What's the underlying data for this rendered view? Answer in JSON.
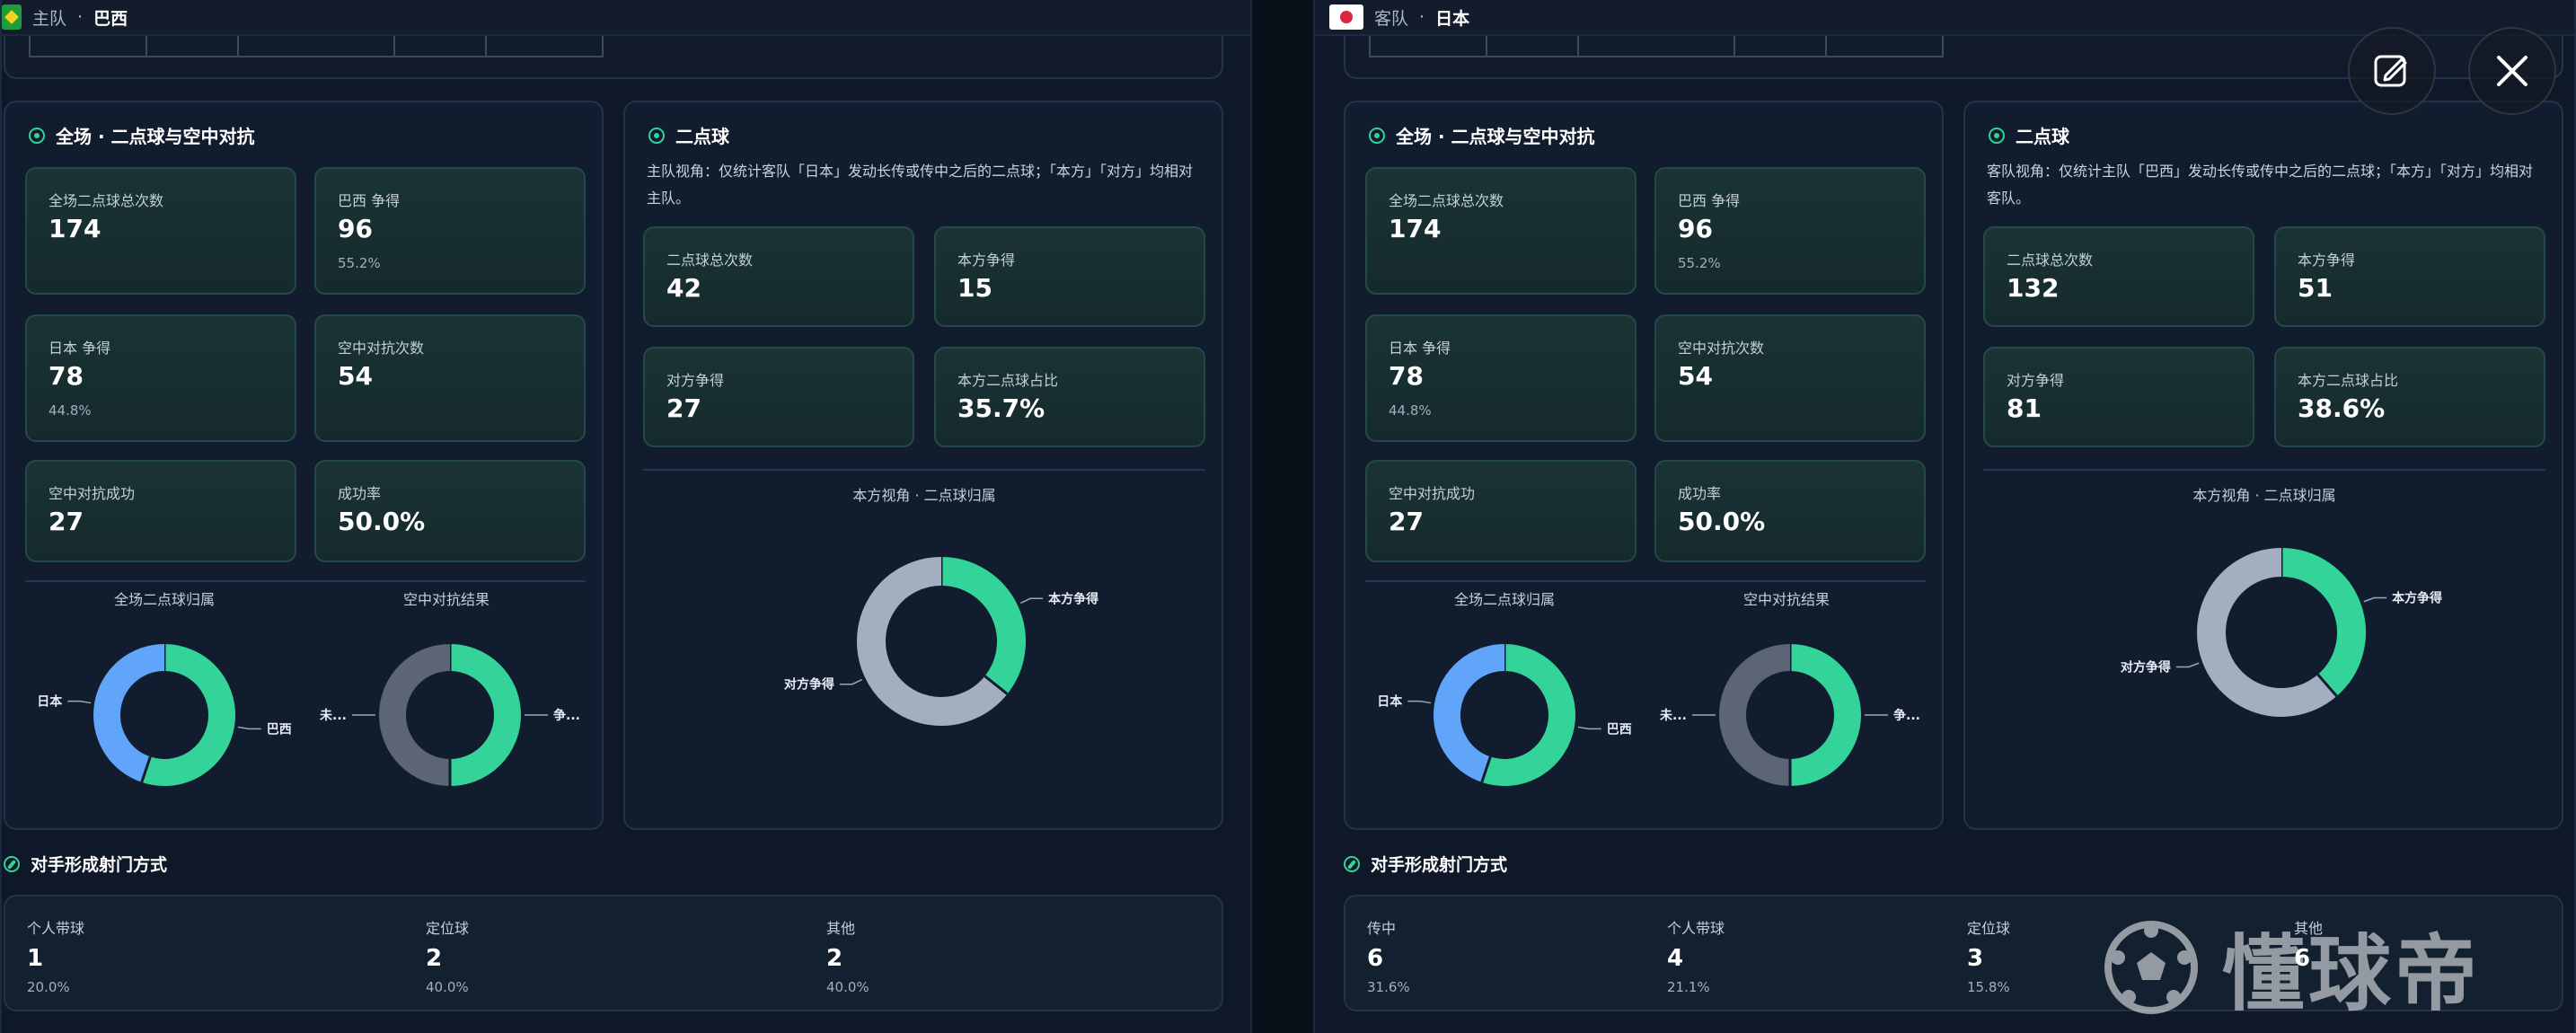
{
  "home_panel": {
    "header": {
      "role": "主队",
      "separator": "·",
      "team": "巴西"
    },
    "full_match": {
      "title": "全场 · 二点球与空中对抗",
      "stats": [
        {
          "label": "全场二点球总次数",
          "value": "174",
          "pct": ""
        },
        {
          "label": "巴西 争得",
          "value": "96",
          "pct": "55.2%"
        },
        {
          "label": "日本 争得",
          "value": "78",
          "pct": "44.8%"
        },
        {
          "label": "空中对抗次数",
          "value": "54",
          "pct": ""
        },
        {
          "label": "空中对抗成功",
          "value": "27",
          "pct": ""
        },
        {
          "label": "成功率",
          "value": "50.0%",
          "pct": ""
        }
      ],
      "chart_left_title": "全场二点球归属",
      "chart_right_title": "空中对抗结果"
    },
    "second_ball": {
      "title": "二点球",
      "description": "主队视角：仅统计客队「日本」发动长传或传中之后的二点球；「本方」「对方」均相对主队。",
      "stats": [
        {
          "label": "二点球总次数",
          "value": "42"
        },
        {
          "label": "本方争得",
          "value": "15"
        },
        {
          "label": "对方争得",
          "value": "27"
        },
        {
          "label": "本方二点球占比",
          "value": "35.7%"
        }
      ],
      "chart_title": "本方视角 · 二点球归属"
    },
    "goal_methods": {
      "title": "对手形成射门方式",
      "items": [
        {
          "label": "个人带球",
          "value": "1",
          "pct": "20.0%"
        },
        {
          "label": "定位球",
          "value": "2",
          "pct": "40.0%"
        },
        {
          "label": "其他",
          "value": "2",
          "pct": "40.0%"
        }
      ]
    }
  },
  "away_panel": {
    "header": {
      "role": "客队",
      "separator": "·",
      "team": "日本"
    },
    "full_match": {
      "title": "全场 · 二点球与空中对抗",
      "stats": [
        {
          "label": "全场二点球总次数",
          "value": "174",
          "pct": ""
        },
        {
          "label": "巴西 争得",
          "value": "96",
          "pct": "55.2%"
        },
        {
          "label": "日本 争得",
          "value": "78",
          "pct": "44.8%"
        },
        {
          "label": "空中对抗次数",
          "value": "54",
          "pct": ""
        },
        {
          "label": "空中对抗成功",
          "value": "27",
          "pct": ""
        },
        {
          "label": "成功率",
          "value": "50.0%",
          "pct": ""
        }
      ],
      "chart_left_title": "全场二点球归属",
      "chart_right_title": "空中对抗结果"
    },
    "second_ball": {
      "title": "二点球",
      "description": "客队视角：仅统计主队「巴西」发动长传或传中之后的二点球；「本方」「对方」均相对客队。",
      "stats": [
        {
          "label": "二点球总次数",
          "value": "132"
        },
        {
          "label": "本方争得",
          "value": "51"
        },
        {
          "label": "对方争得",
          "value": "81"
        },
        {
          "label": "本方二点球占比",
          "value": "38.6%"
        }
      ],
      "chart_title": "本方视角 · 二点球归属"
    },
    "goal_methods": {
      "title": "对手形成射门方式",
      "items": [
        {
          "label": "传中",
          "value": "6",
          "pct": "31.6%"
        },
        {
          "label": "个人带球",
          "value": "4",
          "pct": "21.1%"
        },
        {
          "label": "定位球",
          "value": "3",
          "pct": "15.8%"
        },
        {
          "label": "其他",
          "value": "6",
          "pct": ""
        }
      ]
    }
  },
  "colors": {
    "green": "#34d399",
    "blue": "#60a5fa",
    "slate": "#5b6576",
    "light_slate": "#a3aec0"
  },
  "chart_data": [
    {
      "type": "pie",
      "title": "全场二点球归属",
      "labels": [
        "巴西",
        "日本"
      ],
      "values": [
        96,
        78
      ],
      "colors": [
        "#34d399",
        "#60a5fa"
      ]
    },
    {
      "type": "pie",
      "title": "空中对抗结果",
      "labels": [
        "争...",
        "未..."
      ],
      "values": [
        27,
        27
      ],
      "colors": [
        "#34d399",
        "#5b6576"
      ]
    },
    {
      "type": "pie",
      "title": "本方视角 · 二点球归属",
      "labels": [
        "本方争得",
        "对方争得"
      ],
      "values": [
        15,
        27
      ],
      "colors": [
        "#34d399",
        "#a3aec0"
      ]
    },
    {
      "type": "pie",
      "title": "全场二点球归属",
      "labels": [
        "巴西",
        "日本"
      ],
      "values": [
        96,
        78
      ],
      "colors": [
        "#34d399",
        "#60a5fa"
      ]
    },
    {
      "type": "pie",
      "title": "空中对抗结果",
      "labels": [
        "争...",
        "未..."
      ],
      "values": [
        27,
        27
      ],
      "colors": [
        "#34d399",
        "#5b6576"
      ]
    },
    {
      "type": "pie",
      "title": "本方视角 · 二点球归属",
      "labels": [
        "本方争得",
        "对方争得"
      ],
      "values": [
        51,
        81
      ],
      "colors": [
        "#34d399",
        "#a3aec0"
      ]
    }
  ],
  "watermark": {
    "text": "懂球帝"
  },
  "overlay": {
    "edit_icon": "edit-note-icon",
    "close_icon": "close-icon"
  }
}
